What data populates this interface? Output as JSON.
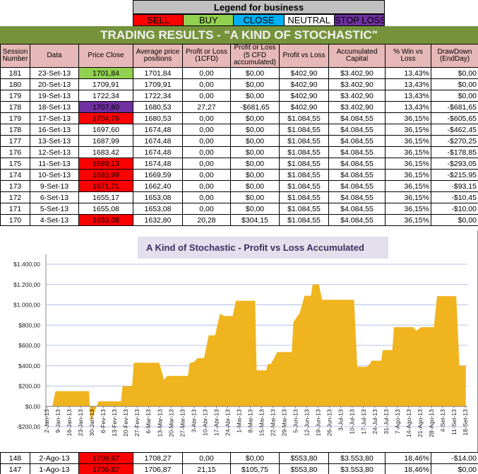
{
  "legend": {
    "title": "Legend for business",
    "items": [
      {
        "label": "SELL",
        "color": "#ff0000"
      },
      {
        "label": "BUY",
        "color": "#92d050"
      },
      {
        "label": "CLOSE",
        "color": "#00b0f0"
      },
      {
        "label": "NEUTRAL",
        "color": "#ffffff"
      },
      {
        "label": "STOP LOSS",
        "color": "#7030a0"
      }
    ]
  },
  "title": "TRADING RESULTS - \"A KIND OF STOCHASTIC\"",
  "columns": [
    "Session Number",
    "Data",
    "Price Close",
    "Average price positions",
    "Profit or Loss (1CFD)",
    "Profit or Loss (5 CFD accumulated)",
    "Profit vs Loss",
    "Accumulated Capital",
    "% Win vs Loss",
    "DrawDown (EndDay)"
  ],
  "rows": [
    {
      "cells": [
        "181",
        "23-Set-13",
        "1701,84",
        "1701,84",
        "0,00",
        "$0,00",
        "$402,90",
        "$3.402,90",
        "13,43%",
        "$0,00"
      ],
      "signal": "BUY"
    },
    {
      "cells": [
        "180",
        "20-Set-13",
        "1709,91",
        "1709,91",
        "0,00",
        "$0,00",
        "$402,90",
        "$3.402,90",
        "13,43%",
        "$0,00"
      ],
      "signal": "NEUTRAL"
    },
    {
      "cells": [
        "179",
        "19-Set-13",
        "1722,34",
        "1722,34",
        "0,00",
        "$0,00",
        "$402,90",
        "$3.402,90",
        "13,43%",
        "$0,00"
      ],
      "signal": "NEUTRAL"
    },
    {
      "cells": [
        "178",
        "18-Set-13",
        "1707,80",
        "1680,53",
        "27,27",
        "-$681,65",
        "$402,90",
        "$3.402,90",
        "13,43%",
        "-$681,65"
      ],
      "signal": "STOP LOSS"
    },
    {
      "cells": [
        "179",
        "17-Set-13",
        "1704,76",
        "1680,53",
        "0,00",
        "$0,00",
        "$1.084,55",
        "$4.084,55",
        "36,15%",
        "-$605,65"
      ],
      "signal": "SELL"
    },
    {
      "cells": [
        "178",
        "16-Set-13",
        "1697,60",
        "1674,48",
        "0,00",
        "$0,00",
        "$1.084,55",
        "$4.084,55",
        "36,15%",
        "-$462,45"
      ],
      "signal": "NEUTRAL"
    },
    {
      "cells": [
        "177",
        "13-Set-13",
        "1687,99",
        "1674,48",
        "0,00",
        "$0,00",
        "$1.084,55",
        "$4.084,55",
        "36,15%",
        "-$270,25"
      ],
      "signal": "NEUTRAL"
    },
    {
      "cells": [
        "176",
        "12-Set-13",
        "1683,42",
        "1674,48",
        "0,00",
        "$0,00",
        "$1.084,55",
        "$4.084,55",
        "36,15%",
        "-$178,85"
      ],
      "signal": "NEUTRAL"
    },
    {
      "cells": [
        "175",
        "11-Set-13",
        "1689,13",
        "1674,48",
        "0,00",
        "$0,00",
        "$1.084,55",
        "$4.084,55",
        "36,15%",
        "-$293,05"
      ],
      "signal": "SELL"
    },
    {
      "cells": [
        "174",
        "10-Set-13",
        "1683,99",
        "1669,59",
        "0,00",
        "$0,00",
        "$1.084,55",
        "$4.084,55",
        "36,15%",
        "-$215,95"
      ],
      "signal": "SELL"
    },
    {
      "cells": [
        "173",
        "9-Set-13",
        "1671,71",
        "1662,40",
        "0,00",
        "$0,00",
        "$1.084,55",
        "$4.084,55",
        "36,15%",
        "-$93,15"
      ],
      "signal": "SELL"
    },
    {
      "cells": [
        "172",
        "6-Set-13",
        "1655,17",
        "1653,08",
        "0,00",
        "$0,00",
        "$1.084,55",
        "$4.084,55",
        "36,15%",
        "-$10,45"
      ],
      "signal": "NEUTRAL"
    },
    {
      "cells": [
        "171",
        "5-Set-13",
        "1655,08",
        "1653,08",
        "0,00",
        "$0,00",
        "$1.084,55",
        "$4.084,55",
        "36,15%",
        "-$10,00"
      ],
      "signal": "NEUTRAL"
    },
    {
      "cells": [
        "170",
        "4-Set-13",
        "1653,08",
        "1632,80",
        "20,28",
        "$304,15",
        "$1.084,55",
        "$4.084,55",
        "36,15%",
        "$0,00"
      ],
      "signal": "SELL"
    }
  ],
  "bottom_rows": [
    {
      "cells": [
        "148",
        "2-Ago-13",
        "1709,67",
        "1708,27",
        "0,00",
        "$0,00",
        "$553,80",
        "$3.553,80",
        "18,46%",
        "-$14,00"
      ],
      "signal": "SELL"
    },
    {
      "cells": [
        "147",
        "1-Ago-13",
        "1706,87",
        "1706,87",
        "21,15",
        "$105,75",
        "$553,80",
        "$3.553,80",
        "18,46%",
        "$0,00"
      ],
      "signal": "SELL"
    }
  ],
  "chart_data": {
    "type": "area",
    "title": "A Kind of Stochastic - Profit vs Loss Accumulated",
    "color": "#f0b41e",
    "ylim": [
      -200,
      1400
    ],
    "yticks": [
      "-$200,00",
      "$0,00",
      "$200,00",
      "$400,00",
      "$600,00",
      "$800,00",
      "$1.000,00",
      "$1.200,00",
      "$1.400,00"
    ],
    "xlim": [
      "2013-01-02",
      "2013-09-23"
    ],
    "xticks": [
      "2-Jan-13",
      "9-Jan-13",
      "16-Jan-13",
      "23-Jan-13",
      "30-Jan-13",
      "6-Fev-13",
      "13-Fev-13",
      "20-Fev-13",
      "27-Fev-13",
      "6-Mar-13",
      "13-Mar-13",
      "20-Mar-13",
      "27-Mar-13",
      "3-Abr-13",
      "10-Abr-13",
      "17-Abr-13",
      "24-Abr-13",
      "1-Mai-13",
      "8-Mai-13",
      "15-Mai-13",
      "22-Mai-13",
      "29-Mai-13",
      "5-Jun-13",
      "12-Jun-13",
      "19-Jun-13",
      "26-Jun-13",
      "3-Jul-13",
      "10-Jul-13",
      "17-Jul-13",
      "24-Jul-13",
      "31-Jul-13",
      "7-Ago-13",
      "14-Ago-13",
      "21-Ago-13",
      "28-Ago-13",
      "4-Set-13",
      "11-Set-13",
      "18-Set-13"
    ],
    "grid": true,
    "x": [
      "2013-01-06",
      "2013-01-08",
      "2013-01-29",
      "2013-01-30",
      "2013-02-04",
      "2013-02-18",
      "2013-02-19",
      "2013-02-25",
      "2013-02-26",
      "2013-03-14",
      "2013-03-17",
      "2013-03-19",
      "2013-04-01",
      "2013-04-02",
      "2013-04-05",
      "2013-04-07",
      "2013-04-11",
      "2013-04-14",
      "2013-04-18",
      "2013-04-21",
      "2013-04-24",
      "2013-04-29",
      "2013-05-01",
      "2013-05-13",
      "2013-05-14",
      "2013-05-20",
      "2013-05-21",
      "2013-05-23",
      "2013-05-27",
      "2013-06-05",
      "2013-06-06",
      "2013-06-10",
      "2013-06-13",
      "2013-06-17",
      "2013-06-18",
      "2013-06-22",
      "2013-06-24",
      "2013-07-14",
      "2013-07-16",
      "2013-07-22",
      "2013-07-24",
      "2013-07-25",
      "2013-07-31",
      "2013-08-01",
      "2013-08-07",
      "2013-08-08",
      "2013-08-20",
      "2013-08-22",
      "2013-08-25",
      "2013-09-02",
      "2013-09-04",
      "2013-09-16",
      "2013-09-18",
      "2013-09-22"
    ],
    "y": [
      0,
      150,
      150,
      -150,
      50,
      50,
      200,
      200,
      430,
      430,
      260,
      300,
      300,
      425,
      440,
      475,
      475,
      700,
      700,
      910,
      890,
      890,
      1040,
      1040,
      355,
      355,
      415,
      420,
      535,
      535,
      830,
      920,
      1090,
      1090,
      1200,
      1200,
      1050,
      1050,
      390,
      390,
      420,
      450,
      450,
      555,
      555,
      780,
      780,
      745,
      780,
      780,
      1085,
      1085,
      400,
      400
    ]
  }
}
